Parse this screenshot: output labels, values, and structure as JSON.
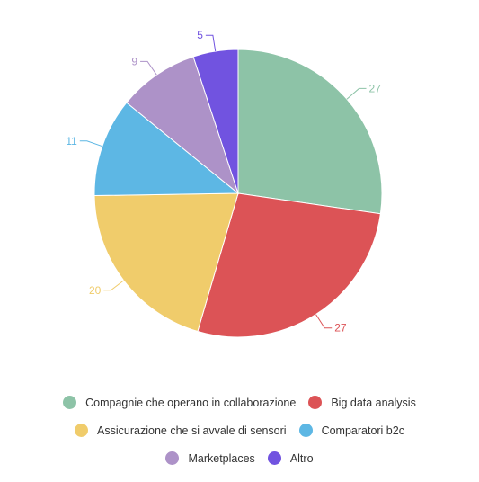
{
  "chart_data": {
    "type": "pie",
    "title": "",
    "slices": [
      {
        "label": "Compagnie che operano in collaborazione",
        "value": 27,
        "value_label": "27",
        "color": "#8dc3a7"
      },
      {
        "label": "Big data analysis",
        "value": 27,
        "value_label": "27",
        "color": "#dc5356"
      },
      {
        "label": "Assicurazione che si avvale di sensori",
        "value": 20,
        "value_label": "20",
        "color": "#f0cc6b"
      },
      {
        "label": "Comparatori b2c",
        "value": 11,
        "value_label": "11",
        "color": "#5db7e4"
      },
      {
        "label": "Marketplaces",
        "value": 9,
        "value_label": "9",
        "color": "#ad92c8"
      },
      {
        "label": "Altro",
        "value": 5,
        "value_label": "5",
        "color": "#7153e0"
      }
    ],
    "start_angle": "12 o'clock",
    "direction": "clockwise",
    "legend_position": "bottom"
  }
}
